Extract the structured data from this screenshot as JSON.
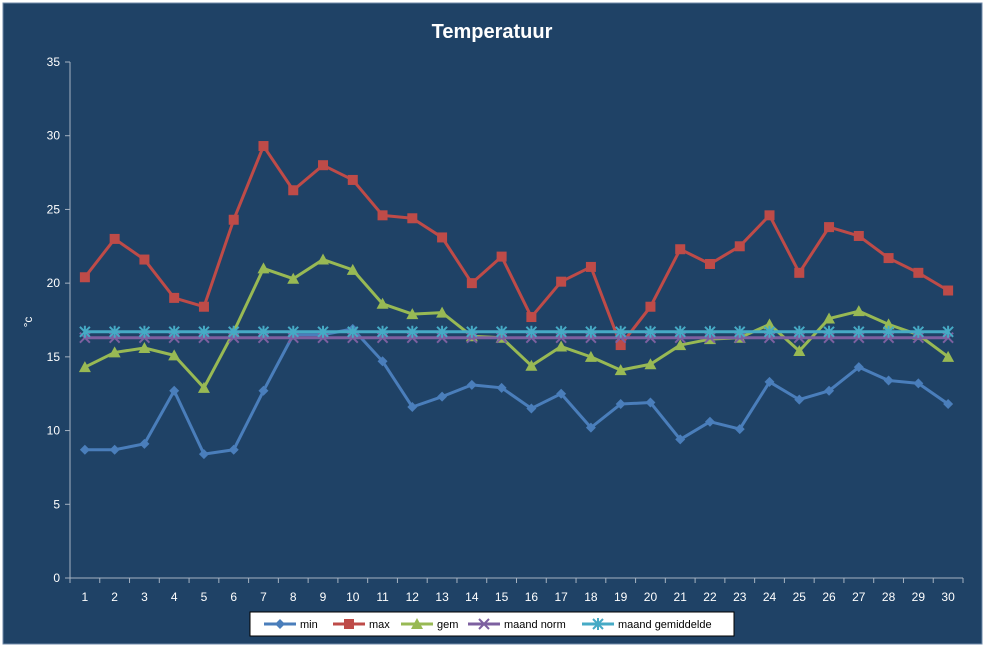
{
  "chart_data": {
    "type": "line",
    "title": "Temperatuur",
    "xlabel": "",
    "ylabel": "°c",
    "ylim": [
      0,
      35
    ],
    "yticks": [
      0,
      5,
      10,
      15,
      20,
      25,
      30,
      35
    ],
    "categories": [
      "1",
      "2",
      "3",
      "4",
      "5",
      "6",
      "7",
      "8",
      "9",
      "10",
      "11",
      "12",
      "13",
      "14",
      "15",
      "16",
      "17",
      "18",
      "19",
      "20",
      "21",
      "22",
      "23",
      "24",
      "25",
      "26",
      "27",
      "28",
      "29",
      "30"
    ],
    "grid": false,
    "legend_position": "bottom",
    "colors": {
      "background": "#1f4266",
      "text": "#ffffff",
      "axis": "#a6b3c2",
      "legend_bg": "#ffffff"
    },
    "series": [
      {
        "name": "min",
        "color": "#4a7ebb",
        "marker": "diamond",
        "values": [
          8.7,
          8.7,
          9.1,
          12.7,
          8.4,
          8.7,
          12.7,
          16.5,
          16.5,
          16.9,
          14.7,
          11.6,
          12.3,
          13.1,
          12.9,
          11.5,
          12.5,
          10.2,
          11.8,
          11.9,
          9.4,
          10.6,
          10.1,
          13.3,
          12.1,
          12.7,
          14.3,
          13.4,
          13.2,
          11.8
        ]
      },
      {
        "name": "max",
        "color": "#be4b48",
        "marker": "square",
        "values": [
          20.4,
          23.0,
          21.6,
          19.0,
          18.4,
          24.3,
          29.3,
          26.3,
          28.0,
          27.0,
          24.6,
          24.4,
          23.1,
          20.0,
          21.8,
          17.7,
          20.1,
          21.1,
          15.8,
          18.4,
          22.3,
          21.3,
          22.5,
          24.6,
          20.7,
          23.8,
          23.2,
          21.7,
          20.7,
          19.5
        ]
      },
      {
        "name": "gem",
        "color": "#98b954",
        "marker": "triangle",
        "values": [
          14.3,
          15.3,
          15.6,
          15.1,
          12.9,
          16.7,
          21.0,
          20.3,
          21.6,
          20.9,
          18.6,
          17.9,
          18.0,
          16.4,
          16.3,
          14.4,
          15.7,
          15.0,
          14.1,
          14.5,
          15.8,
          16.2,
          16.3,
          17.2,
          15.4,
          17.6,
          18.1,
          17.2,
          16.5,
          15.0
        ]
      },
      {
        "name": "maand norm",
        "color": "#7d60a0",
        "marker": "x",
        "values": [
          16.3,
          16.3,
          16.3,
          16.3,
          16.3,
          16.3,
          16.3,
          16.3,
          16.3,
          16.3,
          16.3,
          16.3,
          16.3,
          16.3,
          16.3,
          16.3,
          16.3,
          16.3,
          16.3,
          16.3,
          16.3,
          16.3,
          16.3,
          16.3,
          16.3,
          16.3,
          16.3,
          16.3,
          16.3,
          16.3
        ]
      },
      {
        "name": "maand gemiddelde",
        "color": "#46aac5",
        "marker": "star",
        "values": [
          16.7,
          16.7,
          16.7,
          16.7,
          16.7,
          16.7,
          16.7,
          16.7,
          16.7,
          16.7,
          16.7,
          16.7,
          16.7,
          16.7,
          16.7,
          16.7,
          16.7,
          16.7,
          16.7,
          16.7,
          16.7,
          16.7,
          16.7,
          16.7,
          16.7,
          16.7,
          16.7,
          16.7,
          16.7,
          16.7
        ]
      }
    ]
  }
}
